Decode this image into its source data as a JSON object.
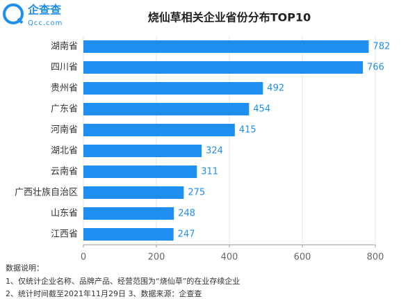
{
  "logo": {
    "name": "企查查",
    "url": "Qcc.com"
  },
  "chart_data": {
    "type": "bar",
    "orientation": "horizontal",
    "title": "烧仙草相关企业省份分布TOP10",
    "categories": [
      "湖南省",
      "四川省",
      "贵州省",
      "广东省",
      "河南省",
      "湖北省",
      "云南省",
      "广西壮族自治区",
      "山东省",
      "江西省"
    ],
    "values": [
      782,
      766,
      492,
      454,
      415,
      324,
      311,
      275,
      248,
      247
    ],
    "color": "#1e8ff0",
    "xlim": [
      0,
      800
    ],
    "xticks": [
      0,
      200,
      400,
      600,
      800
    ],
    "grid": true,
    "notes": [
      "数据说明：",
      "1、仅统计企业名称、品牌产品、经营范围为“烧仙草”的在业存续企业",
      "2、统计时间截至2021年11月29日  3、数据来源：企查查"
    ]
  }
}
